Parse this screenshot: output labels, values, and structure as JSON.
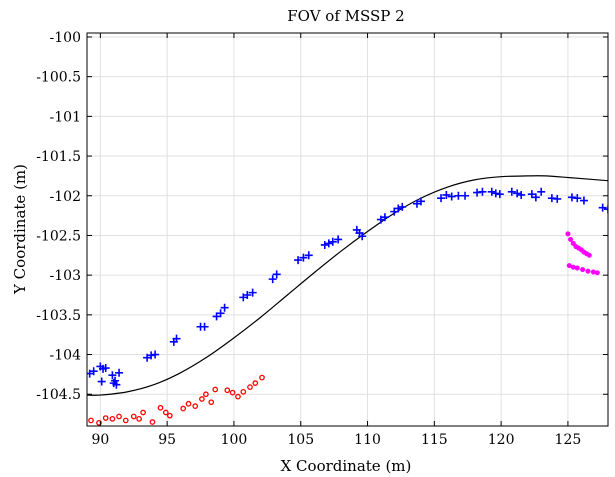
{
  "chart_data": {
    "type": "scatter",
    "title": "FOV of MSSP 2",
    "xlabel": "X Coordinate (m)",
    "ylabel": "Y Coordinate (m)",
    "xlim": [
      89,
      128
    ],
    "ylim": [
      -104.9,
      -99.95
    ],
    "xticks": [
      90,
      95,
      100,
      105,
      110,
      115,
      120,
      125
    ],
    "yticks": [
      -100,
      -100.5,
      -101,
      -101.5,
      -102,
      -102.5,
      -103,
      -103.5,
      -104,
      -104.5
    ],
    "grid": true,
    "legend": "none",
    "colors": {
      "curve": "#000000",
      "blue_series": "#0000ff",
      "red_series": "#ff0000",
      "magenta_series": "#ff00ff"
    },
    "series": [
      {
        "type": "line",
        "color": "#000000",
        "x": [
          89,
          90,
          92,
          94,
          96,
          98,
          100,
          102,
          104,
          106,
          108,
          110,
          112,
          114,
          116,
          118,
          120,
          122,
          123.3,
          125,
          126.5,
          128
        ],
        "y": [
          -104.51,
          -104.51,
          -104.47,
          -104.38,
          -104.23,
          -104.03,
          -103.79,
          -103.53,
          -103.25,
          -102.97,
          -102.7,
          -102.45,
          -102.22,
          -102.03,
          -101.89,
          -101.8,
          -101.76,
          -101.75,
          -101.75,
          -101.77,
          -101.79,
          -101.81
        ]
      },
      {
        "type": "scatter",
        "marker": "plus",
        "color": "#0000ff",
        "x": [
          89.2,
          89.5,
          90,
          90.2,
          90.4,
          90.1,
          90.9,
          91.1,
          91.4,
          91.0,
          91.2,
          93.5,
          93.8,
          94.1,
          95.5,
          95.7,
          97.5,
          97.8,
          98.7,
          99,
          99.3,
          100.7,
          101,
          101.4,
          102.9,
          103.2,
          104.8,
          105.2,
          105.6,
          106.8,
          107.1,
          107.4,
          107.8,
          109.2,
          109.4,
          109.6,
          111,
          111.3,
          112,
          112.3,
          112.6,
          113.7,
          114,
          115.5,
          115.9,
          116.3,
          116.8,
          117.3,
          118.2,
          118.6,
          119.3,
          119.6,
          119.9,
          120.8,
          121.2,
          121.5,
          122.3,
          122.6,
          123,
          123.8,
          124.2,
          125.3,
          125.7,
          126.2,
          127.6,
          128
        ],
        "y": [
          -104.24,
          -104.21,
          -104.15,
          -104.18,
          -104.17,
          -104.34,
          -104.26,
          -104.33,
          -104.23,
          -104.36,
          -104.38,
          -104.04,
          -104.01,
          -104.0,
          -103.84,
          -103.8,
          -103.65,
          -103.65,
          -103.52,
          -103.48,
          -103.41,
          -103.28,
          -103.25,
          -103.22,
          -103.05,
          -102.99,
          -102.81,
          -102.78,
          -102.75,
          -102.62,
          -102.6,
          -102.58,
          -102.55,
          -102.43,
          -102.47,
          -102.51,
          -102.3,
          -102.27,
          -102.2,
          -102.16,
          -102.14,
          -102.1,
          -102.07,
          -102.03,
          -101.99,
          -102.01,
          -102.0,
          -102.0,
          -101.96,
          -101.95,
          -101.95,
          -101.97,
          -101.98,
          -101.95,
          -101.97,
          -101.99,
          -101.98,
          -102.02,
          -101.95,
          -102.03,
          -102.04,
          -102.02,
          -102.03,
          -102.06,
          -102.15,
          -102.17
        ]
      },
      {
        "type": "scatter",
        "marker": "circle",
        "color": "#ff0000",
        "x": [
          89.3,
          89.9,
          90.4,
          90.9,
          91.4,
          91.9,
          92.5,
          92.9,
          93.2,
          93.9,
          94.5,
          94.9,
          95.2,
          96.2,
          96.6,
          97.1,
          97.6,
          97.9,
          98.3,
          98.6,
          99.5,
          99.9,
          100.3,
          100.7,
          101.2,
          101.6,
          102.1
        ],
        "y": [
          -104.83,
          -104.86,
          -104.8,
          -104.81,
          -104.78,
          -104.83,
          -104.78,
          -104.81,
          -104.73,
          -104.85,
          -104.67,
          -104.73,
          -104.77,
          -104.68,
          -104.62,
          -104.65,
          -104.56,
          -104.5,
          -104.6,
          -104.44,
          -104.45,
          -104.48,
          -104.53,
          -104.47,
          -104.41,
          -104.36,
          -104.29
        ]
      },
      {
        "type": "scatter",
        "marker": "dot",
        "color": "#ff00ff",
        "x": [
          125,
          125.2,
          125.4,
          125.6,
          125.8,
          126,
          126.2,
          126.4,
          126.6,
          125.1,
          125.4,
          125.7,
          126.1,
          126.5,
          126.9,
          127.2
        ],
        "y": [
          -102.48,
          -102.55,
          -102.6,
          -102.64,
          -102.66,
          -102.68,
          -102.71,
          -102.73,
          -102.75,
          -102.88,
          -102.9,
          -102.91,
          -102.93,
          -102.95,
          -102.96,
          -102.97
        ]
      }
    ]
  }
}
